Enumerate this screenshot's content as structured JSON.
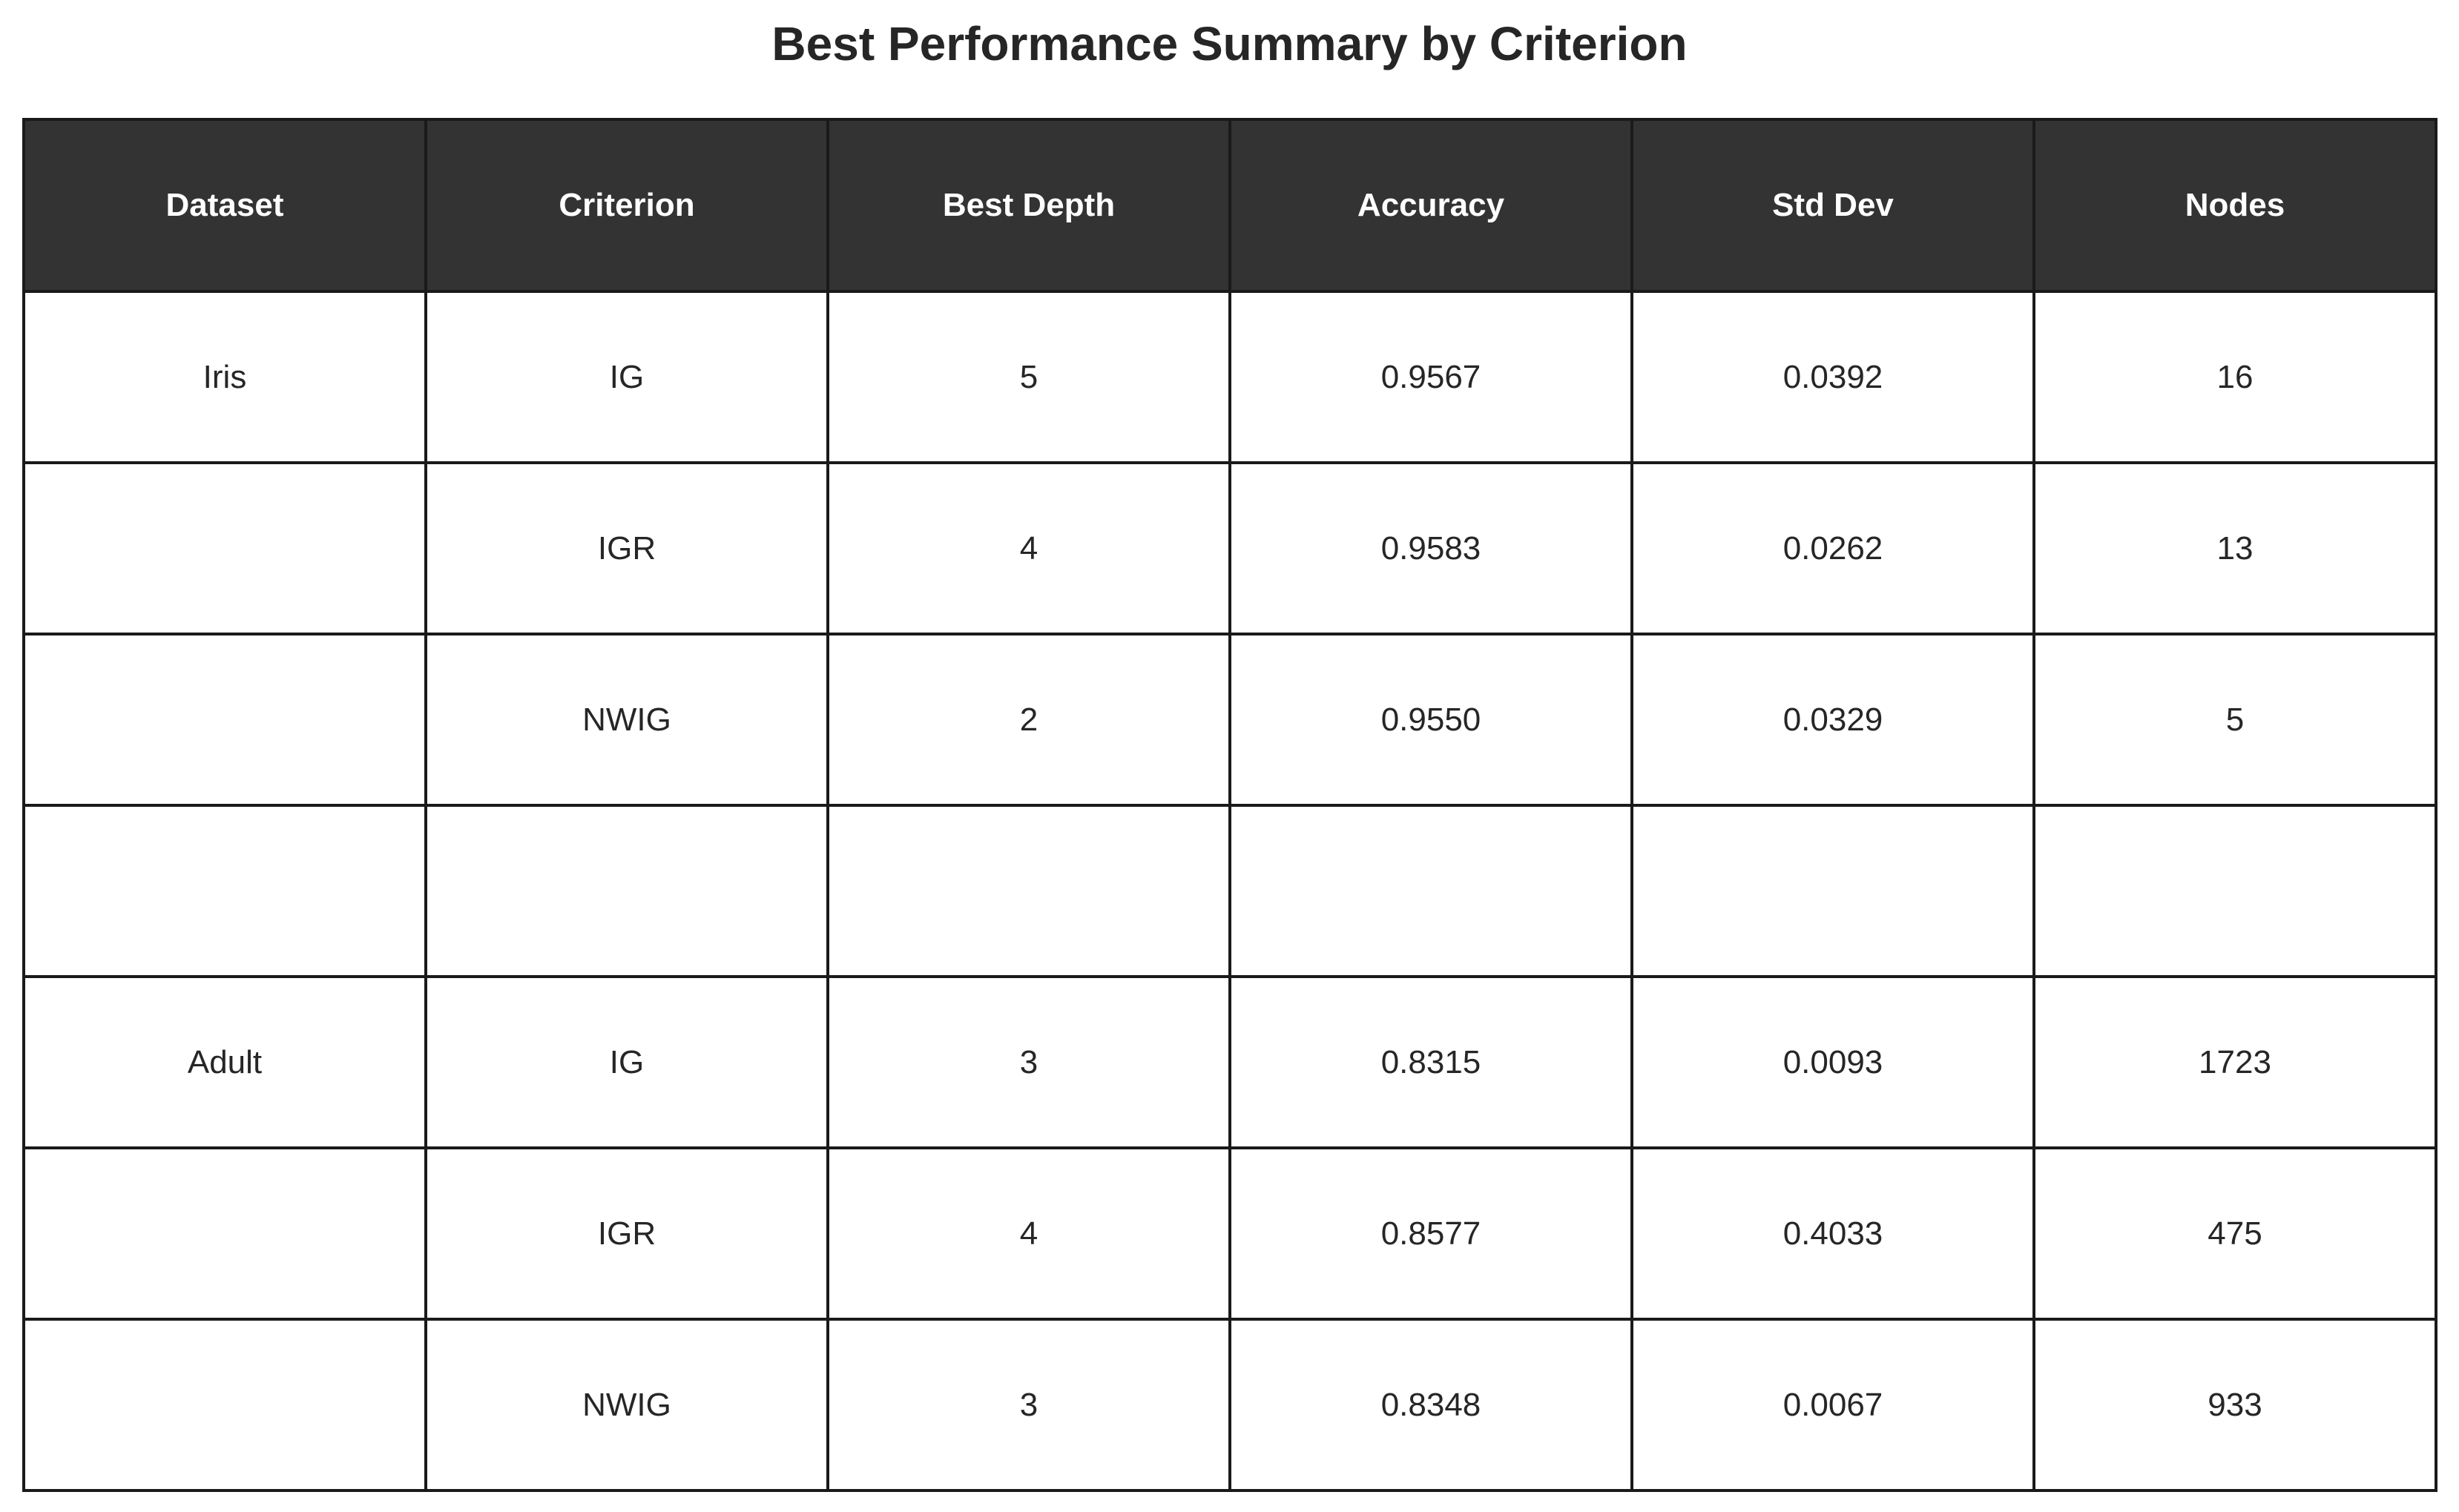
{
  "chart_data": {
    "type": "table",
    "title": "Best Performance Summary by Criterion",
    "columns": [
      "Dataset",
      "Criterion",
      "Best Depth",
      "Accuracy",
      "Std Dev",
      "Nodes"
    ],
    "rows": [
      [
        "Iris",
        "IG",
        "5",
        "0.9567",
        "0.0392",
        "16"
      ],
      [
        "",
        "IGR",
        "4",
        "0.9583",
        "0.0262",
        "13"
      ],
      [
        "",
        "NWIG",
        "2",
        "0.9550",
        "0.0329",
        "5"
      ],
      [
        "",
        "",
        "",
        "",
        "",
        ""
      ],
      [
        "Adult",
        "IG",
        "3",
        "0.8315",
        "0.0093",
        "1723"
      ],
      [
        "",
        "IGR",
        "4",
        "0.8577",
        "0.4033",
        "475"
      ],
      [
        "",
        "NWIG",
        "3",
        "0.8348",
        "0.0067",
        "933"
      ]
    ],
    "colors": {
      "header_background": "#333333",
      "header_text": "#ffffff",
      "cell_background": "#ffffff",
      "border": "#1a1a1a",
      "text": "#262626"
    }
  }
}
